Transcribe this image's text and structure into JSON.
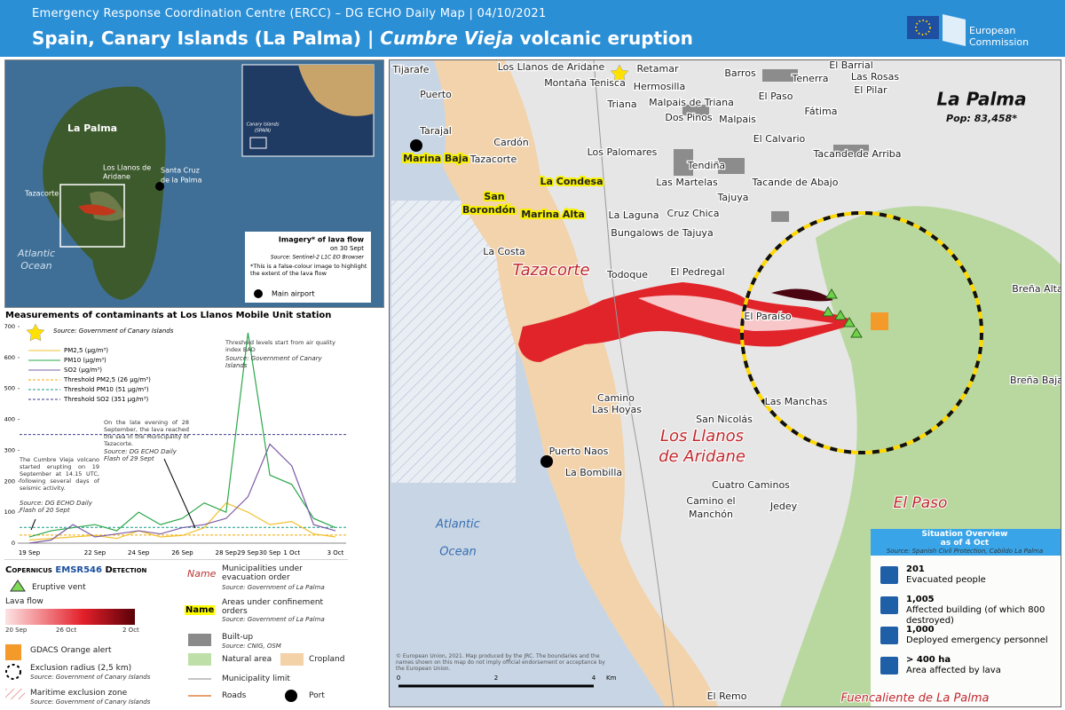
{
  "header": {
    "subtitle": "Emergency Response Coordination Centre (ERCC) – DG ECHO Daily Map | 04/10/2021",
    "title_prefix": "Spain, Canary Islands (La Palma) | ",
    "title_italic": "Cumbre Vieja",
    "title_suffix": " volcanic eruption",
    "logo": "European Commission"
  },
  "inset_map": {
    "labels": [
      "La Palma",
      "Los Llanos de",
      "Aridane",
      "Santa Cruz",
      "de la Palma",
      "Tazacorte",
      "Atlantic",
      "Ocean"
    ],
    "overview_labels": [
      "Canary Islands",
      "(SPAIN)"
    ],
    "legend_title": "Imagery* of lava flow",
    "legend_date": "on 30 Sept",
    "legend_source": "Source: Sentinel-2 L1C EO Browser",
    "legend_note": "*This is a false-colour image to highlight the extent of the lava flow",
    "airport": "Main airport"
  },
  "chart_data": {
    "type": "line",
    "title": "Measurements of contaminants at Los Llanos Mobile Unit station",
    "source": "Source: Government of Canary Islands",
    "categories": [
      "19 Sep",
      null,
      null,
      "22 Sep",
      null,
      "24 Sep",
      null,
      "26 Sep",
      null,
      "28 Sep",
      "29 Sep",
      "30 Sep",
      "1 Oct",
      null,
      "3 Oct"
    ],
    "series": [
      {
        "name": "PM2,5 (µg/m³)",
        "color": "#f2c12e",
        "values": [
          10,
          15,
          20,
          25,
          15,
          40,
          20,
          25,
          50,
          130,
          100,
          60,
          70,
          30,
          20
        ]
      },
      {
        "name": "PM10 (µg/m³)",
        "color": "#2aa84a",
        "values": [
          20,
          40,
          50,
          60,
          40,
          100,
          60,
          80,
          130,
          100,
          680,
          220,
          190,
          80,
          50
        ]
      },
      {
        "name": "SO2 (µg/m³)",
        "color": "#7d5ca6",
        "values": [
          0,
          10,
          60,
          20,
          30,
          40,
          30,
          50,
          60,
          80,
          150,
          320,
          250,
          60,
          40
        ]
      }
    ],
    "thresholds": [
      {
        "name": "Threshold PM2,5 (26 µg/m³)",
        "value": 26,
        "color": "#f2a900"
      },
      {
        "name": "Threshold PM10 (51 µg/m³)",
        "value": 51,
        "color": "#1a9a8a"
      },
      {
        "name": "Threshold SO2 (351 µg/m³)",
        "value": 351,
        "color": "#3a3a8a"
      }
    ],
    "ylim": [
      0,
      700
    ],
    "yticks": [
      0,
      100,
      200,
      300,
      400,
      500,
      600,
      700
    ],
    "annotations": [
      "Threshold levels start from air quality index BAD",
      "Source: Government of Canary Islands",
      "On the late evening of 28 September, the lava reached the sea in the Municipality of Tazacorte.",
      "Source: DG ECHO Daily Flash of 29 Sept",
      "The Cumbre Vieja volcano started erupting on 19 September at 14.15 UTC, following several days of seismic activity.",
      "Source: DG ECHO Daily Flash of 20 Sept"
    ]
  },
  "legend": {
    "copernicus": "Copernicus",
    "emsr": "EMSR546",
    "detection": "Detection",
    "vent": "Eruptive vent",
    "lava": "Lava flow",
    "lava_dates": [
      "20 Sep",
      "26 Oct",
      "2 Oct"
    ],
    "gdacs": "GDACS Orange alert",
    "exclusion": "Exclusion radius (2,5 km)",
    "exclusion_source": "Source: Government of Canary Islands",
    "maritime": "Maritime exclusion zone",
    "maritime_source": "Source: Government of Canary Islands",
    "evac_name": "Name",
    "evac": "Municipalities under evacuation order",
    "evac_source": "Source: Government of La Palma",
    "conf_name": "Name",
    "conf": "Areas under confinement orders",
    "conf_source": "Source: Government of La Palma",
    "builtup": "Built-up",
    "builtup_source": "Source: CNIG, OSM",
    "natural": "Natural area",
    "cropland": "Cropland",
    "limit": "Municipality limit",
    "roads": "Roads",
    "port": "Port"
  },
  "main_map": {
    "title": "La Palma",
    "population": "Pop: 83,458*",
    "towns": [
      "Tijarafe",
      "Puerto",
      "Los Llanos de Aridane",
      "Retamar",
      "Montaña Tenisca",
      "Hermosilla",
      "Barros",
      "El Barrial",
      "Tenerra",
      "Las Rosas",
      "El Pilar",
      "Triana",
      "Malpais de Triana",
      "El Paso",
      "Dos Pinos",
      "Malpais",
      "Fátima",
      "Tarajal",
      "Cardón",
      "El Calvario",
      "Los Palomares",
      "Tacande de Arriba",
      "Tazacorte",
      "Tendiña",
      "Las Martelas",
      "Tacande de Abajo",
      "Tajuya",
      "La Laguna",
      "Cruz Chica",
      "Bungalows de Tajuya",
      "La Costa",
      "Todoque",
      "El Pedregal",
      "El Paraíso",
      "Las Manchas",
      "Camino",
      "Las Hoyas",
      "San Nicolás",
      "Puerto Naos",
      "La Bombilla",
      "Cuatro Caminos",
      "Camino el",
      "Manchón",
      "Jedey",
      "El Remo",
      "Breña Alta",
      "Breña Baja"
    ],
    "confinement": [
      "Marina Baja",
      "La Condesa",
      "San",
      "Borondón",
      "Marina Alta"
    ],
    "municipalities": [
      "Tazacorte",
      "Los Llanos",
      "de Aridane",
      "El Paso",
      "Fuencaliente de La Palma"
    ],
    "ocean": [
      "Atlantic",
      "Ocean"
    ],
    "copyright": "© European Union, 2021. Map produced by the JRC. The boundaries and the names shown on this map do not imply official endorsement or acceptance by the European Union.",
    "scale": [
      "0",
      "2",
      "4",
      "Km"
    ]
  },
  "situation": {
    "title": "Situation Overview",
    "date": "as of 4 Oct",
    "source": "Source: Spanish Civil Protection, Cabildo La Palma",
    "items": [
      {
        "value": "201",
        "label": "Evacuated people"
      },
      {
        "value": "1,005",
        "label": "Affected building (of which 800 destroyed)"
      },
      {
        "value": "1,000",
        "label": "Deployed emergency personnel"
      },
      {
        "value": "> 400 ha",
        "label": "Area affected by lava"
      }
    ]
  }
}
